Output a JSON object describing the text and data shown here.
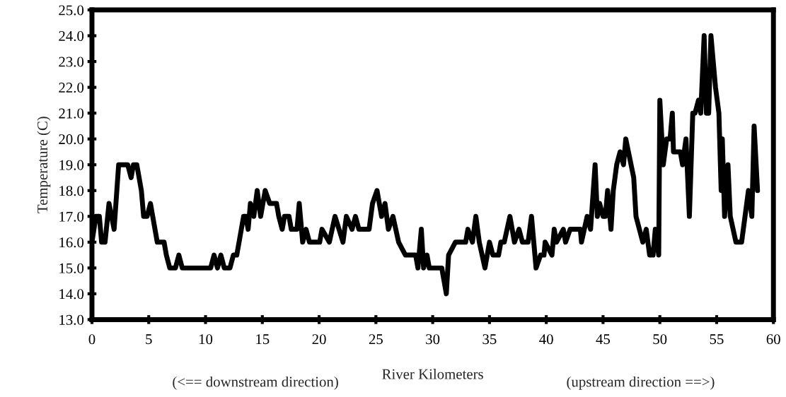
{
  "chart_data": {
    "type": "line",
    "xlabel": "River Kilometers",
    "ylabel": "Temperature (C)",
    "annotations": [
      "(<== downstream direction)",
      "(upstream direction ==>)"
    ],
    "x": [
      0,
      0.35,
      0.65,
      0.85,
      1.15,
      1.5,
      1.95,
      2.35,
      3.15,
      3.45,
      3.65,
      3.95,
      4.35,
      4.55,
      4.85,
      5.15,
      5.75,
      6.35,
      6.55,
      6.85,
      7.35,
      7.65,
      7.95,
      10.45,
      10.75,
      11.05,
      11.35,
      11.65,
      12.15,
      12.45,
      12.75,
      13.35,
      13.55,
      13.75,
      13.95,
      14.25,
      14.55,
      14.85,
      15.25,
      15.65,
      16.25,
      16.45,
      16.75,
      16.95,
      17.35,
      17.55,
      18.05,
      18.25,
      18.55,
      18.85,
      19.15,
      20.05,
      20.25,
      20.9,
      21.4,
      22.1,
      22.4,
      22.9,
      23.2,
      23.5,
      24.4,
      24.7,
      25.1,
      25.5,
      25.8,
      26.1,
      26.5,
      27.0,
      27.6,
      28.5,
      28.7,
      29.0,
      29.2,
      29.5,
      29.7,
      30.8,
      31.2,
      31.4,
      32.0,
      32.9,
      33.1,
      33.5,
      33.8,
      34.1,
      34.6,
      35.0,
      35.3,
      35.8,
      36.0,
      36.3,
      36.8,
      37.2,
      37.6,
      37.9,
      38.4,
      38.7,
      39.1,
      39.5,
      39.8,
      39.9,
      40.5,
      40.7,
      40.9,
      41.5,
      41.7,
      42.1,
      43.0,
      43.1,
      43.6,
      43.9,
      44.3,
      44.5,
      44.7,
      45.0,
      45.2,
      45.4,
      45.7,
      45.9,
      46.2,
      46.5,
      46.8,
      47.0,
      47.7,
      47.9,
      48.2,
      48.5,
      48.8,
      49.1,
      49.4,
      49.6,
      49.9,
      50.0,
      50.3,
      50.6,
      50.9,
      51.1,
      51.2,
      51.8,
      52.0,
      52.3,
      52.6,
      52.9,
      53.1,
      53.4,
      53.6,
      53.9,
      54.1,
      54.3,
      54.5,
      54.9,
      55.2,
      55.4,
      55.5,
      55.7,
      56.0,
      56.2,
      56.7,
      57.2,
      57.8,
      58.1,
      58.3,
      58.6
    ],
    "series": [
      {
        "color": "#000000",
        "values": [
          16,
          17,
          17,
          16,
          16,
          17.5,
          16.5,
          19,
          19,
          18.5,
          19,
          19,
          18,
          17,
          17,
          17.5,
          16,
          16,
          15.5,
          15,
          15,
          15.5,
          15,
          15,
          15.5,
          15,
          15.5,
          15,
          15,
          15.5,
          15.5,
          17,
          17,
          16.5,
          17.5,
          17,
          18,
          17,
          18,
          17.5,
          17.5,
          17,
          16.5,
          17,
          17,
          16.5,
          16.5,
          17.5,
          16,
          16.5,
          16,
          16,
          16.5,
          16,
          17,
          16,
          17,
          16.5,
          17,
          16.5,
          16.5,
          17.5,
          18,
          17,
          17.5,
          16.5,
          17,
          16,
          15.5,
          15.5,
          15,
          16.5,
          15,
          15.5,
          15,
          15,
          14,
          15.5,
          16,
          16,
          16.5,
          16,
          17,
          16,
          15,
          16,
          15.5,
          15.5,
          16,
          16,
          17,
          16,
          16.5,
          16,
          16,
          17,
          15,
          15.5,
          15.5,
          16,
          15.5,
          16.5,
          16,
          16.5,
          16,
          16.5,
          16.5,
          16,
          17,
          16.5,
          19,
          17,
          17.5,
          17,
          17,
          18,
          16.5,
          18,
          19,
          19.5,
          19,
          20,
          18.5,
          17,
          16.5,
          16,
          16.5,
          15.5,
          15.5,
          16.5,
          15.5,
          21.5,
          19,
          20,
          20,
          21,
          19.5,
          19.5,
          19,
          20,
          17,
          21,
          21,
          21.5,
          21,
          24,
          21,
          21,
          24,
          22,
          21,
          18,
          20,
          17,
          19,
          17,
          16,
          16,
          18,
          17,
          20.5,
          18
        ]
      }
    ],
    "xlim": [
      0,
      60
    ],
    "xticks": [
      0,
      5,
      10,
      15,
      20,
      25,
      30,
      35,
      40,
      45,
      50,
      55,
      60
    ],
    "ylim": [
      13,
      25
    ],
    "yticks": [
      {
        "value": 13,
        "label": "13.0"
      },
      {
        "value": 14,
        "label": "14.0"
      },
      {
        "value": 15,
        "label": "15.0"
      },
      {
        "value": 16,
        "label": "16.0"
      },
      {
        "value": 17,
        "label": "17.0"
      },
      {
        "value": 18,
        "label": "18.0"
      },
      {
        "value": 19,
        "label": "19.0"
      },
      {
        "value": 20,
        "label": "20.0"
      },
      {
        "value": 21,
        "label": "21.0"
      },
      {
        "value": 22,
        "label": "22.0"
      },
      {
        "value": 23,
        "label": "23.0"
      },
      {
        "value": 24,
        "label": "24.0"
      },
      {
        "value": 25,
        "label": "25.0"
      }
    ],
    "grid": false,
    "legend": false
  }
}
